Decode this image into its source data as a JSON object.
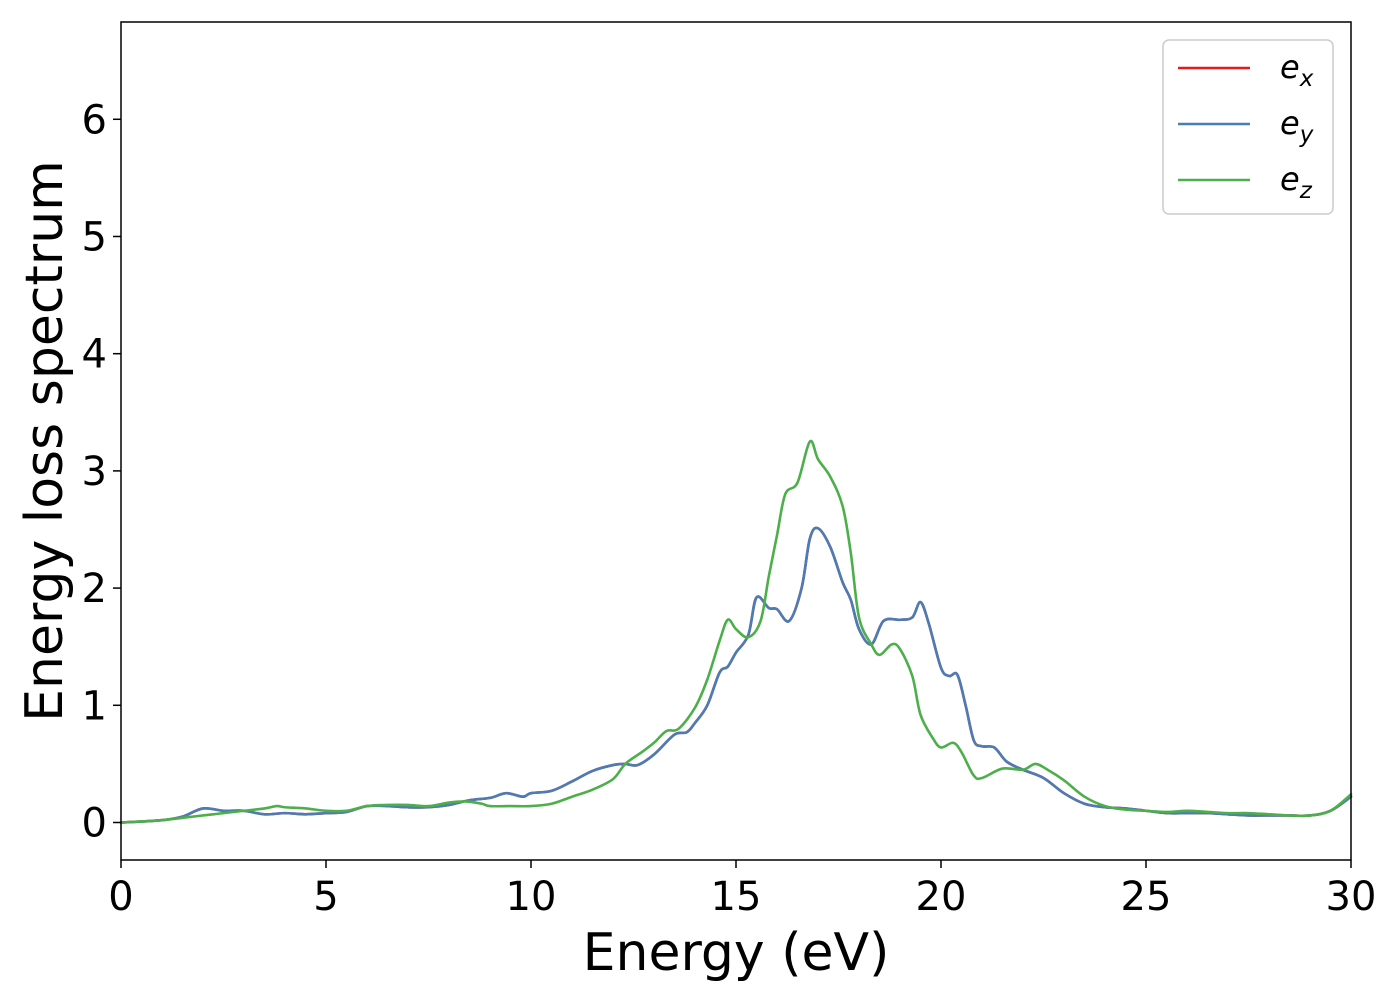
{
  "chart_data": {
    "type": "line",
    "title": "",
    "xlabel": "Energy (eV)",
    "ylabel": "Energy loss spectrum",
    "xlim": [
      0,
      30
    ],
    "ylim": [
      -0.32,
      6.83
    ],
    "xticks": [
      0,
      5,
      10,
      15,
      20,
      25,
      30
    ],
    "xtick_labels": [
      "0",
      "5",
      "10",
      "15",
      "20",
      "25",
      "30"
    ],
    "yticks": [
      0,
      1,
      2,
      3,
      4,
      5,
      6
    ],
    "ytick_labels": [
      "0",
      "1",
      "2",
      "3",
      "4",
      "5",
      "6"
    ],
    "grid": false,
    "legend_position": "top-right",
    "series": [
      {
        "name": "e",
        "subscript": "x",
        "color": "#e41a1c",
        "points": [
          [
            0,
            0.0
          ],
          [
            1,
            0.02
          ],
          [
            1.5,
            0.05
          ],
          [
            2,
            0.12
          ],
          [
            2.5,
            0.1
          ],
          [
            3,
            0.1
          ],
          [
            3.5,
            0.07
          ],
          [
            4,
            0.08
          ],
          [
            4.5,
            0.07
          ],
          [
            5,
            0.08
          ],
          [
            5.5,
            0.09
          ],
          [
            6,
            0.14
          ],
          [
            6.5,
            0.14
          ],
          [
            7,
            0.13
          ],
          [
            7.5,
            0.13
          ],
          [
            8,
            0.15
          ],
          [
            8.5,
            0.19
          ],
          [
            9,
            0.21
          ],
          [
            9.4,
            0.25
          ],
          [
            9.8,
            0.22
          ],
          [
            10,
            0.25
          ],
          [
            10.5,
            0.27
          ],
          [
            11,
            0.35
          ],
          [
            11.5,
            0.44
          ],
          [
            12,
            0.49
          ],
          [
            12.3,
            0.5
          ],
          [
            12.6,
            0.49
          ],
          [
            13,
            0.58
          ],
          [
            13.5,
            0.75
          ],
          [
            13.8,
            0.77
          ],
          [
            14,
            0.85
          ],
          [
            14.3,
            1.0
          ],
          [
            14.6,
            1.28
          ],
          [
            14.8,
            1.33
          ],
          [
            15,
            1.45
          ],
          [
            15.3,
            1.6
          ],
          [
            15.5,
            1.92
          ],
          [
            15.8,
            1.83
          ],
          [
            16,
            1.82
          ],
          [
            16.3,
            1.72
          ],
          [
            16.6,
            2.0
          ],
          [
            16.8,
            2.42
          ],
          [
            17,
            2.51
          ],
          [
            17.3,
            2.35
          ],
          [
            17.6,
            2.05
          ],
          [
            17.8,
            1.9
          ],
          [
            18,
            1.65
          ],
          [
            18.3,
            1.52
          ],
          [
            18.6,
            1.72
          ],
          [
            19,
            1.73
          ],
          [
            19.3,
            1.75
          ],
          [
            19.5,
            1.88
          ],
          [
            19.7,
            1.7
          ],
          [
            20,
            1.32
          ],
          [
            20.2,
            1.25
          ],
          [
            20.4,
            1.26
          ],
          [
            20.6,
            1.0
          ],
          [
            20.8,
            0.7
          ],
          [
            21,
            0.65
          ],
          [
            21.3,
            0.64
          ],
          [
            21.6,
            0.52
          ],
          [
            22,
            0.45
          ],
          [
            22.5,
            0.38
          ],
          [
            23,
            0.25
          ],
          [
            23.5,
            0.16
          ],
          [
            24,
            0.13
          ],
          [
            24.5,
            0.12
          ],
          [
            25,
            0.1
          ],
          [
            25.5,
            0.08
          ],
          [
            26,
            0.08
          ],
          [
            26.5,
            0.08
          ],
          [
            27,
            0.07
          ],
          [
            27.5,
            0.06
          ],
          [
            28,
            0.06
          ],
          [
            28.5,
            0.06
          ],
          [
            29,
            0.06
          ],
          [
            29.5,
            0.1
          ],
          [
            30,
            0.22
          ]
        ]
      },
      {
        "name": "e",
        "subscript": "y",
        "color": "#4a7db6",
        "points": [
          [
            0,
            0.0
          ],
          [
            1,
            0.02
          ],
          [
            1.5,
            0.05
          ],
          [
            2,
            0.12
          ],
          [
            2.5,
            0.1
          ],
          [
            3,
            0.1
          ],
          [
            3.5,
            0.07
          ],
          [
            4,
            0.08
          ],
          [
            4.5,
            0.07
          ],
          [
            5,
            0.08
          ],
          [
            5.5,
            0.09
          ],
          [
            6,
            0.14
          ],
          [
            6.5,
            0.14
          ],
          [
            7,
            0.13
          ],
          [
            7.5,
            0.13
          ],
          [
            8,
            0.15
          ],
          [
            8.5,
            0.19
          ],
          [
            9,
            0.21
          ],
          [
            9.4,
            0.25
          ],
          [
            9.8,
            0.22
          ],
          [
            10,
            0.25
          ],
          [
            10.5,
            0.27
          ],
          [
            11,
            0.35
          ],
          [
            11.5,
            0.44
          ],
          [
            12,
            0.49
          ],
          [
            12.3,
            0.5
          ],
          [
            12.6,
            0.49
          ],
          [
            13,
            0.58
          ],
          [
            13.5,
            0.75
          ],
          [
            13.8,
            0.77
          ],
          [
            14,
            0.85
          ],
          [
            14.3,
            1.0
          ],
          [
            14.6,
            1.28
          ],
          [
            14.8,
            1.33
          ],
          [
            15,
            1.45
          ],
          [
            15.3,
            1.6
          ],
          [
            15.5,
            1.92
          ],
          [
            15.8,
            1.83
          ],
          [
            16,
            1.82
          ],
          [
            16.3,
            1.72
          ],
          [
            16.6,
            2.0
          ],
          [
            16.8,
            2.42
          ],
          [
            17,
            2.51
          ],
          [
            17.3,
            2.35
          ],
          [
            17.6,
            2.05
          ],
          [
            17.8,
            1.9
          ],
          [
            18,
            1.65
          ],
          [
            18.3,
            1.52
          ],
          [
            18.6,
            1.72
          ],
          [
            19,
            1.73
          ],
          [
            19.3,
            1.75
          ],
          [
            19.5,
            1.88
          ],
          [
            19.7,
            1.7
          ],
          [
            20,
            1.32
          ],
          [
            20.2,
            1.25
          ],
          [
            20.4,
            1.26
          ],
          [
            20.6,
            1.0
          ],
          [
            20.8,
            0.7
          ],
          [
            21,
            0.65
          ],
          [
            21.3,
            0.64
          ],
          [
            21.6,
            0.52
          ],
          [
            22,
            0.45
          ],
          [
            22.5,
            0.38
          ],
          [
            23,
            0.25
          ],
          [
            23.5,
            0.16
          ],
          [
            24,
            0.13
          ],
          [
            24.5,
            0.12
          ],
          [
            25,
            0.1
          ],
          [
            25.5,
            0.08
          ],
          [
            26,
            0.08
          ],
          [
            26.5,
            0.08
          ],
          [
            27,
            0.07
          ],
          [
            27.5,
            0.06
          ],
          [
            28,
            0.06
          ],
          [
            28.5,
            0.06
          ],
          [
            29,
            0.06
          ],
          [
            29.5,
            0.1
          ],
          [
            30,
            0.22
          ]
        ]
      },
      {
        "name": "e",
        "subscript": "z",
        "color": "#4daf4a",
        "points": [
          [
            0,
            0.0
          ],
          [
            1,
            0.02
          ],
          [
            1.5,
            0.04
          ],
          [
            2,
            0.06
          ],
          [
            2.5,
            0.08
          ],
          [
            3,
            0.1
          ],
          [
            3.5,
            0.12
          ],
          [
            3.8,
            0.14
          ],
          [
            4,
            0.13
          ],
          [
            4.5,
            0.12
          ],
          [
            5,
            0.1
          ],
          [
            5.5,
            0.1
          ],
          [
            6,
            0.14
          ],
          [
            6.5,
            0.15
          ],
          [
            7,
            0.15
          ],
          [
            7.5,
            0.14
          ],
          [
            8,
            0.17
          ],
          [
            8.4,
            0.18
          ],
          [
            8.8,
            0.16
          ],
          [
            9,
            0.14
          ],
          [
            9.5,
            0.14
          ],
          [
            10,
            0.14
          ],
          [
            10.5,
            0.16
          ],
          [
            11,
            0.22
          ],
          [
            11.5,
            0.28
          ],
          [
            12,
            0.37
          ],
          [
            12.3,
            0.5
          ],
          [
            12.7,
            0.6
          ],
          [
            13,
            0.68
          ],
          [
            13.3,
            0.78
          ],
          [
            13.6,
            0.8
          ],
          [
            14,
            0.98
          ],
          [
            14.3,
            1.22
          ],
          [
            14.6,
            1.55
          ],
          [
            14.8,
            1.73
          ],
          [
            15,
            1.65
          ],
          [
            15.3,
            1.58
          ],
          [
            15.6,
            1.72
          ],
          [
            15.8,
            2.1
          ],
          [
            16,
            2.45
          ],
          [
            16.2,
            2.8
          ],
          [
            16.5,
            2.9
          ],
          [
            16.8,
            3.25
          ],
          [
            17,
            3.1
          ],
          [
            17.3,
            2.95
          ],
          [
            17.6,
            2.7
          ],
          [
            17.8,
            2.3
          ],
          [
            18,
            1.75
          ],
          [
            18.3,
            1.52
          ],
          [
            18.5,
            1.43
          ],
          [
            18.8,
            1.52
          ],
          [
            19,
            1.48
          ],
          [
            19.3,
            1.25
          ],
          [
            19.5,
            0.92
          ],
          [
            19.8,
            0.72
          ],
          [
            20,
            0.64
          ],
          [
            20.3,
            0.68
          ],
          [
            20.5,
            0.6
          ],
          [
            20.8,
            0.4
          ],
          [
            21,
            0.38
          ],
          [
            21.5,
            0.46
          ],
          [
            22,
            0.45
          ],
          [
            22.3,
            0.5
          ],
          [
            22.6,
            0.45
          ],
          [
            23,
            0.36
          ],
          [
            23.5,
            0.22
          ],
          [
            24,
            0.14
          ],
          [
            24.5,
            0.11
          ],
          [
            25,
            0.1
          ],
          [
            25.5,
            0.09
          ],
          [
            26,
            0.1
          ],
          [
            26.5,
            0.09
          ],
          [
            27,
            0.08
          ],
          [
            27.5,
            0.08
          ],
          [
            28,
            0.07
          ],
          [
            28.5,
            0.06
          ],
          [
            29,
            0.06
          ],
          [
            29.5,
            0.1
          ],
          [
            30,
            0.24
          ]
        ]
      }
    ]
  }
}
